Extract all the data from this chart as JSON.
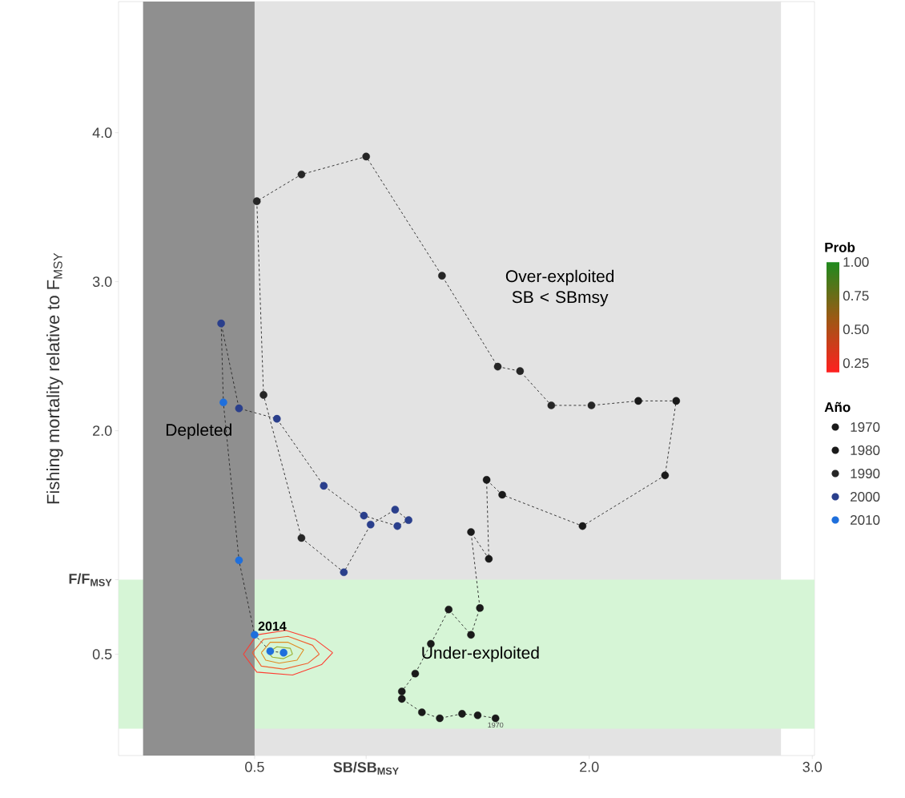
{
  "chart_data": {
    "type": "bubble",
    "xlim": [
      -0.11,
      3.01
    ],
    "ylim": [
      -0.18,
      4.88
    ],
    "xticks": [
      {
        "value": 0.5,
        "label": "0.5"
      },
      {
        "value": 1.0,
        "label": "SB/SB$_{MSY}$"
      },
      {
        "value": 2.0,
        "label": "2.0"
      },
      {
        "value": 3.0,
        "label": "3.0"
      }
    ],
    "yticks": [
      {
        "value": 0.5,
        "label": "0.5"
      },
      {
        "value": 1.0,
        "label": "F/F$_{MSY}$"
      },
      {
        "value": 2.0,
        "label": "2.0"
      },
      {
        "value": 3.0,
        "label": "3.0"
      },
      {
        "value": 4.0,
        "label": "4.0"
      }
    ],
    "ylabel": "Fishing mortality relative to  F$_{MSY}$",
    "grid": false,
    "legend_title": "Año",
    "size_legend": [
      1970,
      1980,
      1990,
      2000,
      2010
    ],
    "clabel": "Prob",
    "clim": [
      0.18,
      1.0
    ],
    "cticks": [
      {
        "value": 0.25,
        "label": "0.25"
      },
      {
        "value": 0.5,
        "label": "0.50"
      },
      {
        "value": 0.75,
        "label": "0.75"
      },
      {
        "value": 1.0,
        "label": "1.00"
      }
    ],
    "bands": [
      {
        "axis": "x",
        "from": 0.5,
        "to": 2.86,
        "color": "#e3e3e3",
        "label": "Over-exploited SB < SBmsy"
      },
      {
        "axis": "y",
        "from": 0,
        "to": 1.0,
        "color": "#d6f5d6",
        "label": "Under-exploited"
      },
      {
        "axis": "x",
        "from": 0,
        "to": 0.5,
        "color": "#8f8f8f",
        "label": "Depleted"
      }
    ],
    "annotations": [
      {
        "text": "1970",
        "x": 1.58,
        "y": 0.07
      },
      {
        "text": "2014",
        "x": 0.5,
        "y": 0.63
      }
    ],
    "series": [
      {
        "type": "line",
        "line_style": "dashed",
        "color": "#262626",
        "x": [
          1.58,
          1.5,
          1.43,
          1.33,
          1.25,
          1.16,
          1.16,
          1.22,
          1.29,
          1.37,
          1.47,
          1.51,
          1.47,
          1.55,
          1.54,
          1.61,
          1.97,
          2.34,
          2.39,
          2.22,
          2.01,
          1.83,
          1.69,
          1.59,
          1.34,
          1.0,
          0.71,
          0.51,
          0.54,
          0.71,
          0.9,
          1.02,
          1.13,
          1.19,
          1.14,
          0.99,
          0.81,
          0.6,
          0.43,
          0.35,
          0.36,
          0.43,
          0.5,
          0.57,
          0.63
        ],
        "values": [
          0.07,
          0.09,
          0.1,
          0.07,
          0.11,
          0.2,
          0.25,
          0.37,
          0.57,
          0.8,
          0.63,
          0.81,
          1.32,
          1.14,
          1.67,
          1.57,
          1.36,
          1.7,
          2.2,
          2.2,
          2.17,
          2.17,
          2.4,
          2.43,
          3.04,
          3.84,
          3.72,
          3.54,
          2.24,
          1.28,
          1.05,
          1.37,
          1.47,
          1.4,
          1.36,
          1.43,
          1.63,
          2.08,
          2.15,
          2.72,
          2.19,
          1.13,
          0.63,
          0.52,
          0.51
        ]
      },
      {
        "marker": "circle",
        "x": [
          1.58,
          1.5,
          1.43,
          1.33,
          1.25,
          1.16,
          1.16,
          1.22,
          1.29,
          1.37,
          1.47,
          1.51,
          1.47,
          1.55,
          1.54,
          1.61,
          1.97,
          2.34,
          2.39,
          2.22,
          2.01,
          1.83,
          1.69,
          1.59,
          1.34,
          1.0,
          0.71,
          0.51,
          0.54,
          0.71,
          0.9,
          1.02,
          1.13,
          1.19,
          1.14,
          0.99,
          0.81,
          0.6,
          0.43,
          0.35,
          0.36,
          0.43,
          0.5,
          0.57,
          0.63
        ],
        "values": [
          0.07,
          0.09,
          0.1,
          0.07,
          0.11,
          0.2,
          0.25,
          0.37,
          0.57,
          0.8,
          0.63,
          0.81,
          1.32,
          1.14,
          1.67,
          1.57,
          1.36,
          1.7,
          2.2,
          2.2,
          2.17,
          2.17,
          2.4,
          2.43,
          3.04,
          3.84,
          3.72,
          3.54,
          2.24,
          1.28,
          1.05,
          1.37,
          1.47,
          1.4,
          1.36,
          1.43,
          1.63,
          2.08,
          2.15,
          2.72,
          2.19,
          1.13,
          0.63,
          0.52,
          0.51
        ],
        "sizes": [
          1970,
          1971,
          1972,
          1973,
          1974,
          1975,
          1976,
          1977,
          1978,
          1979,
          1980,
          1981,
          1982,
          1983,
          1984,
          1985,
          1986,
          1987,
          1988,
          1989,
          1990,
          1991,
          1992,
          1993,
          1994,
          1995,
          1996,
          1997,
          1998,
          1999,
          2000,
          2001,
          2002,
          2003,
          2004,
          2005,
          2006,
          2007,
          2008,
          2009,
          2010,
          2011,
          2012,
          2013,
          2014
        ],
        "colors": [
          "#1a1a1a",
          "#1a1a1a",
          "#1a1a1a",
          "#1a1a1a",
          "#1a1a1a",
          "#1a1a1a",
          "#1a1a1a",
          "#1a1a1a",
          "#1a1a1a",
          "#1a1a1a",
          "#1a1a1a",
          "#1a1a1a",
          "#1a1a1a",
          "#1a1a1a",
          "#1a1a1a",
          "#1a1a1a",
          "#1a1a1a",
          "#1a1a1a",
          "#1a1a1a",
          "#1a1a1a",
          "#262626",
          "#262626",
          "#262626",
          "#262626",
          "#262626",
          "#262626",
          "#262626",
          "#262626",
          "#262626",
          "#262626",
          "#2a3f8c",
          "#2a3f8c",
          "#2a3f8c",
          "#2a3f8c",
          "#2a3f8c",
          "#2a3f8c",
          "#2a3f8c",
          "#2a3f8c",
          "#2a3f8c",
          "#2a3f8c",
          "#1e6fdc",
          "#1e6fdc",
          "#1e6fdc",
          "#1e6fdc",
          "#1e6fdc"
        ]
      },
      {
        "type": "line",
        "color": "#ff3b30",
        "x": [
          0.45,
          0.51,
          0.64,
          0.77,
          0.85
        ],
        "values": [
          0.5,
          0.63,
          0.66,
          0.6,
          0.51
        ]
      },
      {
        "type": "line",
        "color": "#ff3b30",
        "x": [
          0.45,
          0.51,
          0.67,
          0.8,
          0.85
        ],
        "values": [
          0.5,
          0.38,
          0.36,
          0.43,
          0.51
        ]
      },
      {
        "type": "line",
        "color": "#f06030",
        "x": [
          0.49,
          0.54,
          0.65,
          0.76,
          0.79
        ],
        "values": [
          0.51,
          0.6,
          0.62,
          0.56,
          0.5
        ]
      },
      {
        "type": "line",
        "color": "#f06030",
        "x": [
          0.49,
          0.53,
          0.63,
          0.74,
          0.79
        ],
        "values": [
          0.51,
          0.42,
          0.4,
          0.44,
          0.5
        ]
      },
      {
        "type": "line",
        "color": "#e08a20",
        "x": [
          0.53,
          0.57,
          0.65,
          0.72
        ],
        "values": [
          0.51,
          0.58,
          0.58,
          0.53
        ]
      },
      {
        "type": "line",
        "color": "#e08a20",
        "x": [
          0.53,
          0.55,
          0.61,
          0.69,
          0.72
        ],
        "values": [
          0.51,
          0.46,
          0.44,
          0.46,
          0.53
        ]
      },
      {
        "type": "line",
        "color": "#9bb030",
        "x": [
          0.56,
          0.6,
          0.66,
          0.67
        ],
        "values": [
          0.51,
          0.55,
          0.54,
          0.5
        ]
      },
      {
        "type": "line",
        "color": "#9bb030",
        "x": [
          0.56,
          0.58,
          0.63,
          0.67
        ],
        "values": [
          0.51,
          0.48,
          0.47,
          0.5
        ]
      }
    ]
  }
}
